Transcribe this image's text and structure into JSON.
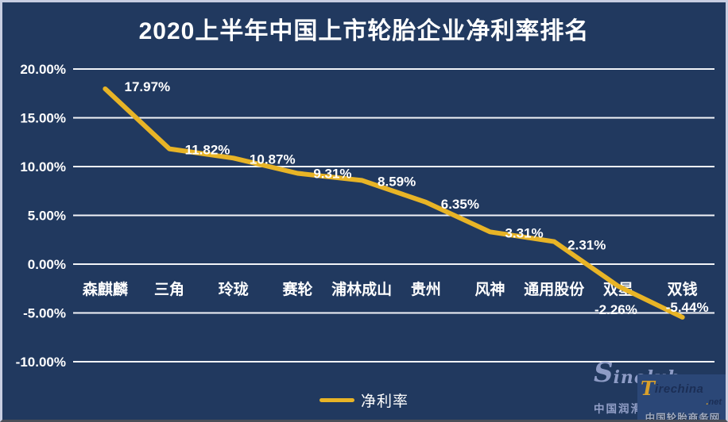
{
  "title": "2020上半年中国上市轮胎企业净利率排名",
  "colors": {
    "background": "#21395F",
    "frame_border": "#C8CEE2",
    "gridline": "#F2F4F8",
    "line": "#E8B426",
    "text": "#FFFFFF"
  },
  "chart_data": {
    "type": "line",
    "title": "2020上半年中国上市轮胎企业净利率排名",
    "categories": [
      "森麒麟",
      "三角",
      "玲珑",
      "赛轮",
      "浦林成山",
      "贵州",
      "风神",
      "通用股份",
      "双星",
      "双钱"
    ],
    "series": [
      {
        "name": "净利率",
        "values": [
          17.97,
          11.82,
          10.87,
          9.31,
          8.59,
          6.35,
          3.31,
          2.31,
          -2.26,
          -5.44
        ]
      }
    ],
    "data_labels": [
      "17.97%",
      "11.82%",
      "10.87%",
      "9.31%",
      "8.59%",
      "6.35%",
      "3.31%",
      "2.31%",
      "-2.26%",
      "-5.44%"
    ],
    "ylim": [
      -10,
      20
    ],
    "ytick_values": [
      20,
      15,
      10,
      5,
      0,
      -5,
      -10
    ],
    "ytick_labels": [
      "20.00%",
      "15.00%",
      "10.00%",
      "5.00%",
      "0.00%",
      "-5.00%",
      "-10.00%"
    ],
    "grid": true,
    "legend_position": "bottom",
    "xlabel": "",
    "ylabel": ""
  },
  "legend": {
    "label": "净利率"
  },
  "watermarks": {
    "sinolub": {
      "big_letter": "S",
      "brand_rest": "inolub",
      "tld": "com",
      "caption": "中国润滑油信息网"
    },
    "tirechina": {
      "logo": "T",
      "brand_rest": "irechina",
      "tld_dot": ".",
      "tld": "net",
      "caption": "中国轮胎商务网"
    }
  }
}
